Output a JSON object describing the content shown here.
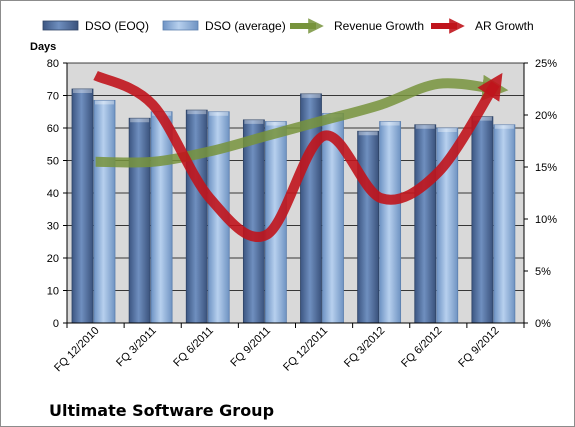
{
  "chart_data": {
    "type": "bar",
    "title": "Ultimate Software Group",
    "ylabel": "Days",
    "ylim": [
      0,
      80
    ],
    "y_ticks": [
      "0",
      "10",
      "20",
      "30",
      "40",
      "50",
      "60",
      "70",
      "80"
    ],
    "y2lim": [
      0,
      0.25
    ],
    "y2_ticks": [
      "0%",
      "5%",
      "10%",
      "15%",
      "20%",
      "25%"
    ],
    "grid": true,
    "legend_position": "top",
    "categories": [
      "FQ 12/2010",
      "FQ 3/2011",
      "FQ 6/2011",
      "FQ 9/2011",
      "FQ 12/2011",
      "FQ 3/2012",
      "FQ 6/2012",
      "FQ 9/2012"
    ],
    "series": [
      {
        "name": "DSO (EOQ)",
        "type": "bar",
        "axis": "left",
        "color": "#4f6e9f",
        "values": [
          72,
          63,
          65.5,
          62.5,
          70.5,
          59,
          61,
          63.5
        ]
      },
      {
        "name": "DSO (average)",
        "type": "bar",
        "axis": "left",
        "color": "#8fb2dc",
        "values": [
          68.5,
          65,
          65,
          62,
          64.5,
          62,
          60,
          61
        ]
      },
      {
        "name": "Revenue Growth",
        "type": "line",
        "axis": "right",
        "color": "#77933c",
        "values": [
          0.155,
          0.155,
          0.165,
          0.18,
          0.195,
          0.21,
          0.23,
          0.225
        ]
      },
      {
        "name": "AR Growth",
        "type": "line",
        "axis": "right",
        "color": "#c0141c",
        "values": [
          0.238,
          0.21,
          0.12,
          0.085,
          0.18,
          0.12,
          0.145,
          0.23
        ]
      }
    ]
  },
  "colors": {
    "plot_background": "#d9d9d9",
    "grid": "#000000",
    "bar_eoq": "#4f6e9f",
    "bar_avg": "#8fb2dc",
    "revenue_line": "#77933c",
    "ar_line": "#c0141c"
  }
}
